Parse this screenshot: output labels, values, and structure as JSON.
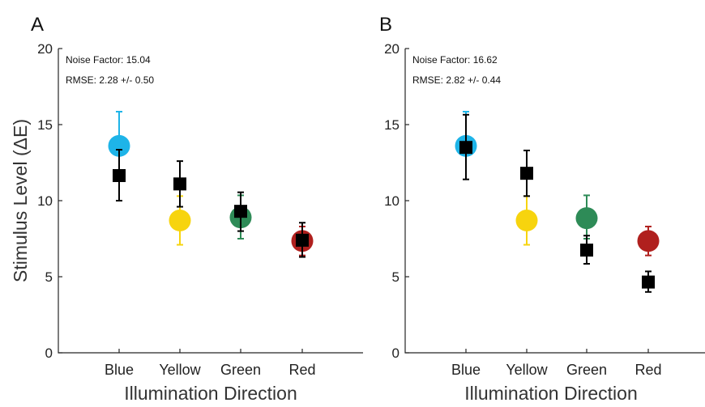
{
  "chart_data": [
    {
      "type": "scatter",
      "panel_label": "A",
      "xlabel": "Illumination Direction",
      "ylabel": "Stimulus Level (ΔE)",
      "ylim": [
        0,
        20
      ],
      "yticks": [
        0,
        5,
        10,
        15,
        20
      ],
      "categories": [
        "Blue",
        "Yellow",
        "Green",
        "Red"
      ],
      "category_colors": [
        "#1eb4e8",
        "#f7d40e",
        "#2e8b57",
        "#b0201e"
      ],
      "annotations": [
        "Noise Factor: 15.04",
        "RMSE: 2.28 +/- 0.50"
      ],
      "series": [
        {
          "marker": "circle",
          "values": [
            13.6,
            8.7,
            8.9,
            7.35
          ],
          "err_low": [
            13.6,
            7.1,
            7.5,
            6.4
          ],
          "err_high": [
            15.85,
            10.3,
            10.35,
            8.3
          ]
        },
        {
          "marker": "square",
          "color": "#000000",
          "values": [
            11.65,
            11.1,
            9.3,
            7.4
          ],
          "err_low": [
            10.0,
            9.6,
            8.0,
            6.3
          ],
          "err_high": [
            13.35,
            12.6,
            10.55,
            8.55
          ]
        }
      ],
      "grid": false
    },
    {
      "type": "scatter",
      "panel_label": "B",
      "xlabel": "Illumination Direction",
      "ylabel": "",
      "ylim": [
        0,
        20
      ],
      "yticks": [
        0,
        5,
        10,
        15,
        20
      ],
      "categories": [
        "Blue",
        "Yellow",
        "Green",
        "Red"
      ],
      "category_colors": [
        "#1eb4e8",
        "#f7d40e",
        "#2e8b57",
        "#b0201e"
      ],
      "annotations": [
        "Noise Factor: 16.62",
        "RMSE: 2.82 +/- 0.44"
      ],
      "series": [
        {
          "marker": "circle",
          "values": [
            13.6,
            8.7,
            8.85,
            7.35
          ],
          "err_low": [
            13.6,
            7.1,
            7.5,
            6.4
          ],
          "err_high": [
            15.85,
            10.3,
            10.35,
            8.3
          ]
        },
        {
          "marker": "square",
          "color": "#000000",
          "values": [
            13.5,
            11.8,
            6.75,
            4.65
          ],
          "err_low": [
            11.4,
            10.3,
            5.85,
            4.0
          ],
          "err_high": [
            15.65,
            13.3,
            7.7,
            5.35
          ]
        }
      ],
      "grid": false
    }
  ]
}
